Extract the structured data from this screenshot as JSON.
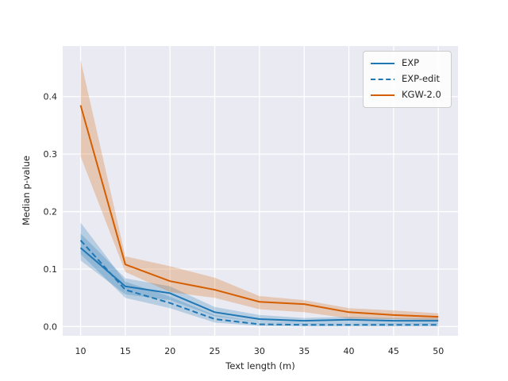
{
  "figure": {
    "background": "#ffffff",
    "plot_background": "#eaeaf2",
    "grid_color": "#ffffff",
    "text_color": "#262626",
    "legend_border_color": "#cccccc"
  },
  "chart_data": {
    "type": "line",
    "title": "",
    "xlabel": "Text length (m)",
    "ylabel": "Median p-value",
    "xlim": [
      8,
      52.2
    ],
    "ylim": [
      -0.016,
      0.488
    ],
    "grid": true,
    "legend_position": "upper right",
    "xticks": [
      10,
      15,
      20,
      25,
      30,
      35,
      40,
      45,
      50
    ],
    "xtick_labels": [
      "10",
      "15",
      "20",
      "25",
      "30",
      "35",
      "40",
      "45",
      "50"
    ],
    "yticks": [
      0.0,
      0.1,
      0.2,
      0.3,
      0.4
    ],
    "ytick_labels": [
      "0.0",
      "0.1",
      "0.2",
      "0.3",
      "0.4"
    ],
    "x": [
      10,
      15,
      20,
      25,
      30,
      35,
      40,
      45,
      50
    ],
    "series": [
      {
        "name": "EXP",
        "color": "#1f77b4",
        "dash": "solid",
        "values": [
          0.137,
          0.07,
          0.058,
          0.025,
          0.013,
          0.01,
          0.012,
          0.01,
          0.01
        ],
        "band_low": [
          0.115,
          0.056,
          0.046,
          0.018,
          0.008,
          0.005,
          0.006,
          0.005,
          0.005
        ],
        "band_high": [
          0.162,
          0.084,
          0.07,
          0.034,
          0.02,
          0.015,
          0.017,
          0.015,
          0.015
        ]
      },
      {
        "name": "EXP-edit",
        "color": "#1f77b4",
        "dash": "dashed",
        "values": [
          0.15,
          0.064,
          0.041,
          0.013,
          0.004,
          0.003,
          0.003,
          0.003,
          0.003
        ],
        "band_low": [
          0.126,
          0.05,
          0.032,
          0.007,
          0.001,
          0.0,
          0.0,
          0.0,
          0.0
        ],
        "band_high": [
          0.181,
          0.078,
          0.052,
          0.02,
          0.008,
          0.006,
          0.006,
          0.006,
          0.006
        ]
      },
      {
        "name": "KGW-2.0",
        "color": "#d55e00",
        "dash": "solid",
        "values": [
          0.385,
          0.108,
          0.079,
          0.064,
          0.043,
          0.039,
          0.025,
          0.02,
          0.017
        ],
        "band_low": [
          0.296,
          0.095,
          0.06,
          0.05,
          0.03,
          0.025,
          0.014,
          0.013,
          0.011
        ],
        "band_high": [
          0.464,
          0.122,
          0.105,
          0.085,
          0.053,
          0.046,
          0.032,
          0.028,
          0.023
        ]
      }
    ]
  }
}
